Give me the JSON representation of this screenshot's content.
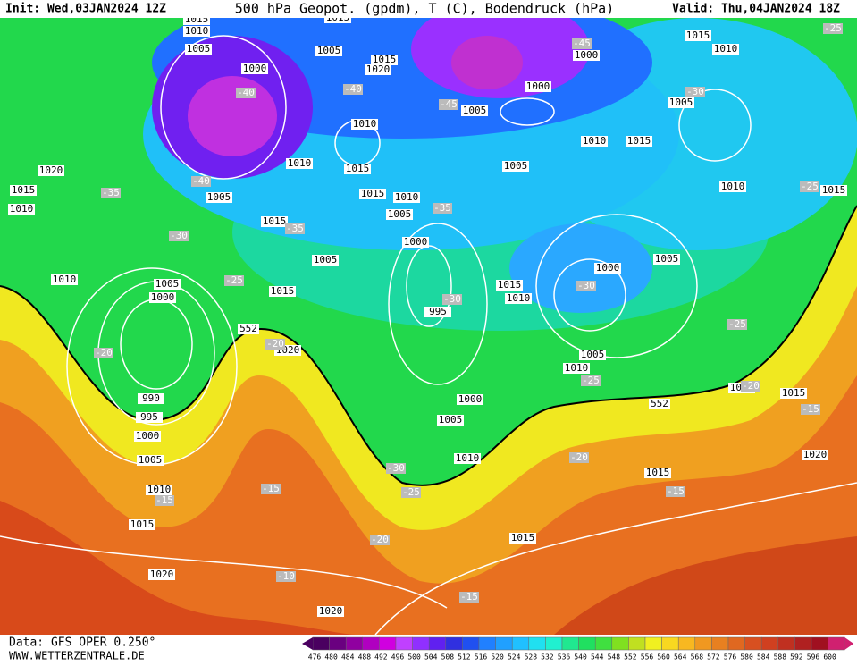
{
  "header": {
    "init": "Init: Wed,03JAN2024 12Z",
    "title": "500 hPa Geopot. (gpdm), T (C), Bodendruck (hPa)",
    "valid": "Valid: Thu,04JAN2024 18Z"
  },
  "footer": {
    "data": "Data: GFS OPER 0.250°",
    "site": "WWW.WETTERZENTRALE.DE"
  },
  "scale": {
    "labels": [
      "476",
      "480",
      "484",
      "488",
      "492",
      "496",
      "500",
      "504",
      "508",
      "512",
      "516",
      "520",
      "524",
      "528",
      "532",
      "536",
      "540",
      "544",
      "548",
      "552",
      "556",
      "560",
      "564",
      "568",
      "572",
      "576",
      "580",
      "584",
      "588",
      "592",
      "596",
      "600"
    ],
    "colors": [
      "#4a0060",
      "#6a0080",
      "#9000a0",
      "#b000c0",
      "#d000e0",
      "#c040ff",
      "#9030ff",
      "#6020f0",
      "#3030e0",
      "#2050f0",
      "#2080ff",
      "#20a0ff",
      "#20c0ff",
      "#20e0f0",
      "#20f0d0",
      "#20e890",
      "#20e060",
      "#40e040",
      "#80e020",
      "#c0e020",
      "#f0f020",
      "#f8d820",
      "#f8b820",
      "#f09820",
      "#e88020",
      "#e06820",
      "#d85020",
      "#d04020",
      "#c03020",
      "#b02020",
      "#a01020",
      "#d02070"
    ]
  },
  "pressure_labels": [
    "1015",
    "1010",
    "1005",
    "1000",
    "1005",
    "1015",
    "1015",
    "1020",
    "1010",
    "1010",
    "1015",
    "1005",
    "1015",
    "1010",
    "1005",
    "1000",
    "1005",
    "1015",
    "1020",
    "1015",
    "1010",
    "1010",
    "1005",
    "1000",
    "1015",
    "1020",
    "990",
    "995",
    "1000",
    "1005",
    "1010",
    "1015",
    "1020",
    "1020",
    "995",
    "1000",
    "1005",
    "1010",
    "1015",
    "1015",
    "1020",
    "1015",
    "1010",
    "1010",
    "1005",
    "1000",
    "1005",
    "1015",
    "1010",
    "1005",
    "1010",
    "1015",
    "1005",
    "1000",
    "1000",
    "1015",
    "1010",
    "1005",
    "1010",
    "1015"
  ],
  "temperature_labels": [
    "-45",
    "-40",
    "-40",
    "-45",
    "-40",
    "-35",
    "-35",
    "-35",
    "-30",
    "-25",
    "-30",
    "-30",
    "-30",
    "-25",
    "-25",
    "-20",
    "-20",
    "-25",
    "-20",
    "-15",
    "-30",
    "-25",
    "-20",
    "-15",
    "-15",
    "-15",
    "-20",
    "-10",
    "-15",
    "-25"
  ],
  "height_labels": [
    "552",
    "552"
  ]
}
